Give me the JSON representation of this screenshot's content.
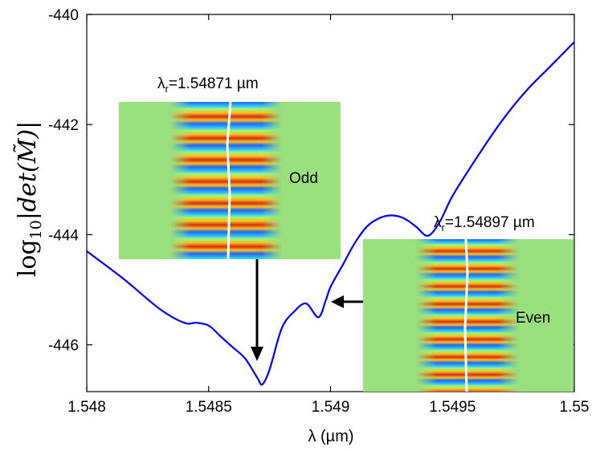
{
  "chart_data": {
    "type": "line",
    "xlabel": "λ (µm)",
    "ylabel_parts": {
      "base": "log",
      "sub": "10",
      "body": "|det(M̃)|"
    },
    "xlim": [
      1.548,
      1.55
    ],
    "ylim": [
      -446.85,
      -440
    ],
    "xticks": [
      1.548,
      1.5485,
      1.549,
      1.5495,
      1.55
    ],
    "xtick_labels": [
      "1.548",
      "1.5485",
      "1.549",
      "1.5495",
      "1.55"
    ],
    "yticks": [
      -440,
      -442,
      -444,
      -446
    ],
    "ytick_labels": [
      "-440",
      "-442",
      "-444",
      "-446"
    ],
    "series": [
      {
        "name": "log10|det(M)|",
        "color": "#0000ee",
        "x": [
          1.548,
          1.54815,
          1.5483,
          1.5484,
          1.54845,
          1.5485,
          1.54855,
          1.5486,
          1.54865,
          1.5487,
          1.54872,
          1.54875,
          1.5488,
          1.54885,
          1.5489,
          1.54895,
          1.54898,
          1.549,
          1.54905,
          1.5491,
          1.54915,
          1.5492,
          1.54925,
          1.5493,
          1.54935,
          1.5494,
          1.54945,
          1.5495,
          1.5496,
          1.5497,
          1.5498,
          1.5499,
          1.55
        ],
        "y": [
          -444.3,
          -444.8,
          -445.35,
          -445.6,
          -445.6,
          -445.65,
          -445.85,
          -446.05,
          -446.25,
          -446.6,
          -446.72,
          -446.45,
          -445.7,
          -445.4,
          -445.25,
          -445.5,
          -445.2,
          -444.95,
          -444.55,
          -444.15,
          -443.85,
          -443.7,
          -443.65,
          -443.7,
          -443.85,
          -444.02,
          -443.75,
          -443.3,
          -442.6,
          -441.95,
          -441.4,
          -440.95,
          -440.5
        ]
      }
    ],
    "annotations": [
      {
        "label_main": "λ",
        "label_sub": "r",
        "label_rest": "=1.54871  µm",
        "mode": "Odd"
      },
      {
        "label_main": "λ",
        "label_sub": "r",
        "label_rest": "=1.54897  µm",
        "mode": "Even"
      }
    ],
    "grid": false
  }
}
